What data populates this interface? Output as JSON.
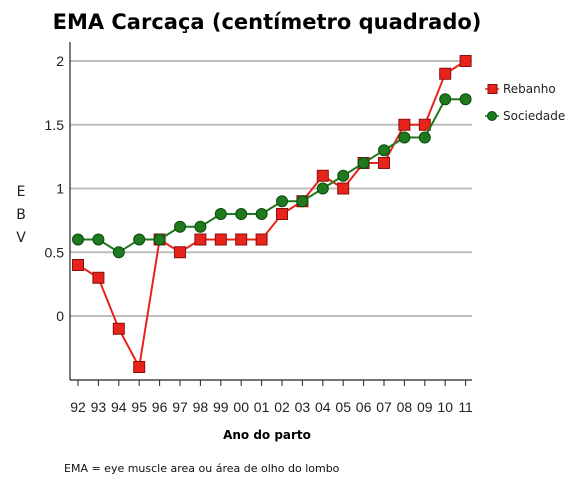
{
  "chart_data": {
    "type": "line",
    "title": "EMA Carcaça (centímetro quadrado)",
    "xlabel": "Ano do parto",
    "ylabel": "E B V",
    "categories": [
      "92",
      "93",
      "94",
      "95",
      "96",
      "97",
      "98",
      "99",
      "00",
      "01",
      "02",
      "03",
      "04",
      "05",
      "06",
      "07",
      "08",
      "09",
      "10",
      "11"
    ],
    "yticks": [
      "2",
      "1.5",
      "1",
      "0.5",
      "0"
    ],
    "ylim": [
      -0.25,
      2.05
    ],
    "grid": true,
    "legend_placement": "right",
    "series": [
      {
        "name": "Rebanho",
        "color": "#e8231b",
        "marker": "square",
        "values": [
          0.4,
          0.3,
          -0.1,
          -0.4,
          0.6,
          0.5,
          0.6,
          0.6,
          0.6,
          0.6,
          0.8,
          0.9,
          1.1,
          1.0,
          1.2,
          1.2,
          1.5,
          1.5,
          1.9,
          2.0
        ]
      },
      {
        "name": "Sociedade",
        "color": "#1f7a1f",
        "marker": "circle",
        "values": [
          0.6,
          0.6,
          0.5,
          0.6,
          0.6,
          0.7,
          0.7,
          0.8,
          0.8,
          0.8,
          0.9,
          0.9,
          1.0,
          1.1,
          1.2,
          1.3,
          1.4,
          1.4,
          1.7,
          1.7
        ]
      }
    ]
  },
  "footnote": "EMA = eye muscle area ou área de olho do lombo"
}
